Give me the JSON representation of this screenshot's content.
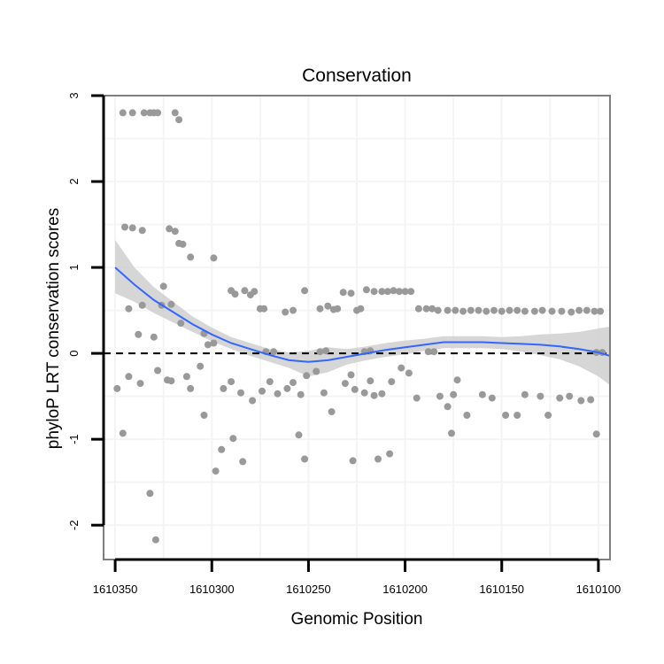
{
  "chart_data": {
    "type": "scatter",
    "title": "Conservation",
    "xlabel": "Genomic Position",
    "ylabel": "phyloP LRT conservation scores",
    "xlim": [
      1610356,
      1610094
    ],
    "ylim": [
      -2.4,
      3.0
    ],
    "x_reversed": true,
    "x_ticks": [
      1610350,
      1610300,
      1610250,
      1610200,
      1610150,
      1610100
    ],
    "x_tick_labels": [
      "1610350",
      "1610300",
      "1610250",
      "1610200",
      "1610150",
      "1610100"
    ],
    "y_ticks": [
      -2,
      -1,
      0,
      1,
      2,
      3
    ],
    "y_tick_labels": [
      "-2",
      "-1",
      "0",
      "1",
      "2",
      "3"
    ],
    "grid": true,
    "reference_line": {
      "y": 0,
      "style": "dashed"
    },
    "colors": {
      "points": "#999999",
      "smooth_line": "#3366ff",
      "ribbon": "#cccccc",
      "panel_border": "#7f7f7f",
      "grid": "#f4f4f4"
    },
    "points": [
      [
        1610346,
        2.8
      ],
      [
        1610341,
        2.8
      ],
      [
        1610335,
        2.8
      ],
      [
        1610332,
        2.8
      ],
      [
        1610330,
        2.8
      ],
      [
        1610328,
        2.8
      ],
      [
        1610319,
        2.8
      ],
      [
        1610317,
        2.72
      ],
      [
        1610345,
        1.47
      ],
      [
        1610341,
        1.46
      ],
      [
        1610336,
        1.43
      ],
      [
        1610322,
        1.45
      ],
      [
        1610319,
        1.42
      ],
      [
        1610317,
        1.28
      ],
      [
        1610315,
        1.27
      ],
      [
        1610311,
        1.12
      ],
      [
        1610299,
        1.11
      ],
      [
        1610343,
        0.52
      ],
      [
        1610336,
        0.56
      ],
      [
        1610326,
        0.56
      ],
      [
        1610325,
        0.78
      ],
      [
        1610321,
        0.57
      ],
      [
        1610316,
        0.35
      ],
      [
        1610304,
        0.23
      ],
      [
        1610290,
        0.73
      ],
      [
        1610288,
        0.69
      ],
      [
        1610283,
        0.73
      ],
      [
        1610280,
        0.68
      ],
      [
        1610278,
        0.72
      ],
      [
        1610275,
        0.52
      ],
      [
        1610273,
        0.52
      ],
      [
        1610262,
        0.48
      ],
      [
        1610258,
        0.5
      ],
      [
        1610252,
        0.73
      ],
      [
        1610244,
        0.52
      ],
      [
        1610240,
        0.55
      ],
      [
        1610237,
        0.51
      ],
      [
        1610235,
        0.52
      ],
      [
        1610232,
        0.71
      ],
      [
        1610228,
        0.7
      ],
      [
        1610225,
        0.5
      ],
      [
        1610223,
        0.52
      ],
      [
        1610220,
        0.74
      ],
      [
        1610216,
        0.72
      ],
      [
        1610212,
        0.72
      ],
      [
        1610209,
        0.72
      ],
      [
        1610206,
        0.73
      ],
      [
        1610203,
        0.72
      ],
      [
        1610200,
        0.72
      ],
      [
        1610197,
        0.72
      ],
      [
        1610193,
        0.52
      ],
      [
        1610189,
        0.52
      ],
      [
        1610186,
        0.52
      ],
      [
        1610183,
        0.5
      ],
      [
        1610178,
        0.5
      ],
      [
        1610174,
        0.5
      ],
      [
        1610170,
        0.49
      ],
      [
        1610166,
        0.5
      ],
      [
        1610162,
        0.5
      ],
      [
        1610158,
        0.49
      ],
      [
        1610154,
        0.5
      ],
      [
        1610150,
        0.49
      ],
      [
        1610146,
        0.5
      ],
      [
        1610142,
        0.5
      ],
      [
        1610138,
        0.49
      ],
      [
        1610133,
        0.49
      ],
      [
        1610129,
        0.5
      ],
      [
        1610124,
        0.49
      ],
      [
        1610119,
        0.49
      ],
      [
        1610114,
        0.48
      ],
      [
        1610110,
        0.5
      ],
      [
        1610106,
        0.5
      ],
      [
        1610102,
        0.49
      ],
      [
        1610099,
        0.49
      ],
      [
        1610338,
        0.22
      ],
      [
        1610330,
        0.19
      ],
      [
        1610302,
        0.1
      ],
      [
        1610299,
        0.12
      ],
      [
        1610272,
        0.02
      ],
      [
        1610268,
        0.02
      ],
      [
        1610244,
        0.02
      ],
      [
        1610241,
        0.03
      ],
      [
        1610221,
        0.02
      ],
      [
        1610218,
        0.03
      ],
      [
        1610188,
        0.02
      ],
      [
        1610185,
        0.02
      ],
      [
        1610101,
        0.01
      ],
      [
        1610098,
        0.01
      ],
      [
        1610349,
        -0.41
      ],
      [
        1610343,
        -0.27
      ],
      [
        1610337,
        -0.35
      ],
      [
        1610328,
        -0.2
      ],
      [
        1610323,
        -0.31
      ],
      [
        1610321,
        -0.32
      ],
      [
        1610313,
        -0.27
      ],
      [
        1610311,
        -0.41
      ],
      [
        1610306,
        -0.15
      ],
      [
        1610304,
        -0.72
      ],
      [
        1610294,
        -0.41
      ],
      [
        1610290,
        -0.33
      ],
      [
        1610285,
        -0.46
      ],
      [
        1610279,
        -0.55
      ],
      [
        1610274,
        -0.44
      ],
      [
        1610270,
        -0.33
      ],
      [
        1610266,
        -0.47
      ],
      [
        1610261,
        -0.41
      ],
      [
        1610258,
        -0.34
      ],
      [
        1610254,
        -0.48
      ],
      [
        1610251,
        -0.26
      ],
      [
        1610246,
        -0.21
      ],
      [
        1610242,
        -0.46
      ],
      [
        1610238,
        -0.68
      ],
      [
        1610231,
        -0.35
      ],
      [
        1610228,
        -0.25
      ],
      [
        1610226,
        -0.42
      ],
      [
        1610221,
        -0.46
      ],
      [
        1610218,
        -0.32
      ],
      [
        1610216,
        -0.49
      ],
      [
        1610212,
        -0.47
      ],
      [
        1610207,
        -0.33
      ],
      [
        1610202,
        -0.17
      ],
      [
        1610198,
        -0.23
      ],
      [
        1610194,
        -0.52
      ],
      [
        1610182,
        -0.5
      ],
      [
        1610178,
        -0.62
      ],
      [
        1610175,
        -0.48
      ],
      [
        1610173,
        -0.31
      ],
      [
        1610168,
        -0.72
      ],
      [
        1610160,
        -0.48
      ],
      [
        1610155,
        -0.52
      ],
      [
        1610148,
        -0.72
      ],
      [
        1610142,
        -0.72
      ],
      [
        1610138,
        -0.48
      ],
      [
        1610130,
        -0.5
      ],
      [
        1610126,
        -0.72
      ],
      [
        1610120,
        -0.52
      ],
      [
        1610115,
        -0.5
      ],
      [
        1610109,
        -0.55
      ],
      [
        1610104,
        -0.54
      ],
      [
        1610346,
        -0.93
      ],
      [
        1610298,
        -1.37
      ],
      [
        1610295,
        -1.12
      ],
      [
        1610289,
        -0.99
      ],
      [
        1610284,
        -1.26
      ],
      [
        1610255,
        -0.95
      ],
      [
        1610252,
        -1.23
      ],
      [
        1610227,
        -1.25
      ],
      [
        1610214,
        -1.23
      ],
      [
        1610208,
        -1.17
      ],
      [
        1610176,
        -0.93
      ],
      [
        1610101,
        -0.94
      ],
      [
        1610332,
        -1.63
      ],
      [
        1610329,
        -2.17
      ]
    ],
    "smooth": {
      "x": [
        1610350,
        1610340,
        1610330,
        1610320,
        1610310,
        1610300,
        1610290,
        1610280,
        1610270,
        1610260,
        1610250,
        1610240,
        1610230,
        1610220,
        1610210,
        1610200,
        1610190,
        1610180,
        1610170,
        1610160,
        1610150,
        1610140,
        1610130,
        1610120,
        1610110,
        1610100,
        1610094
      ],
      "y": [
        1.0,
        0.8,
        0.62,
        0.48,
        0.34,
        0.22,
        0.12,
        0.05,
        -0.02,
        -0.08,
        -0.1,
        -0.08,
        -0.04,
        0.0,
        0.04,
        0.07,
        0.1,
        0.13,
        0.13,
        0.13,
        0.12,
        0.11,
        0.1,
        0.08,
        0.05,
        0.01,
        -0.03
      ],
      "lower": [
        0.7,
        0.6,
        0.47,
        0.36,
        0.25,
        0.14,
        0.05,
        -0.03,
        -0.1,
        -0.17,
        -0.27,
        -0.22,
        -0.13,
        -0.08,
        -0.04,
        -0.01,
        0.03,
        0.06,
        0.06,
        0.06,
        0.05,
        0.02,
        -0.02,
        -0.07,
        -0.15,
        -0.27,
        -0.37
      ],
      "upper": [
        1.32,
        1.0,
        0.77,
        0.6,
        0.43,
        0.3,
        0.19,
        0.12,
        0.05,
        0.01,
        0.03,
        0.07,
        0.05,
        0.08,
        0.12,
        0.15,
        0.17,
        0.2,
        0.2,
        0.2,
        0.19,
        0.2,
        0.22,
        0.23,
        0.25,
        0.29,
        0.31
      ]
    }
  }
}
